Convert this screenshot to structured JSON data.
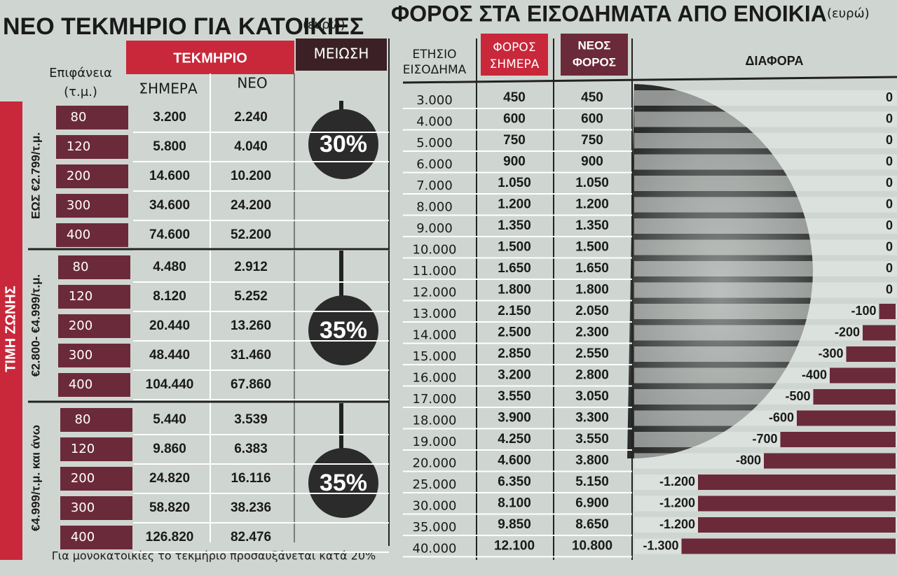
{
  "left": {
    "title": "ΝΕΟ ΤΕΚΜΗΡΙΟ ΓΙΑ ΚΑΤΟΙΚΙΕΣ",
    "unit": "(ευρώ)",
    "headers": {
      "area": [
        "Επιφάνεια",
        "(τ.μ.)"
      ],
      "tekmirio": "ΤΕΚΜΗΡΙΟ",
      "today": "ΣΗΜΕΡΑ",
      "new": "ΝΕΟ",
      "reduction": "ΜΕΙΩΣΗ"
    },
    "side_label": "ΤΙΜΗ ΖΩΝΗΣ",
    "groups": [
      {
        "zone": "ΕΩΣ €2.799/τ.μ.",
        "reduction": "30%",
        "rows": [
          [
            "80",
            "3.200",
            "2.240"
          ],
          [
            "120",
            "5.800",
            "4.040"
          ],
          [
            "200",
            "14.600",
            "10.200"
          ],
          [
            "300",
            "34.600",
            "24.200"
          ],
          [
            "400",
            "74.600",
            "52.200"
          ]
        ]
      },
      {
        "zone": "€2.800- €4.999/τ.μ.",
        "reduction": "35%",
        "rows": [
          [
            "80",
            "4.480",
            "2.912"
          ],
          [
            "120",
            "8.120",
            "5.252"
          ],
          [
            "200",
            "20.440",
            "13.260"
          ],
          [
            "300",
            "48.440",
            "31.460"
          ],
          [
            "400",
            "104.440",
            "67.860"
          ]
        ]
      },
      {
        "zone": "€4.999/τ.μ. και άνω",
        "reduction": "35%",
        "rows": [
          [
            "80",
            "5.440",
            "3.539"
          ],
          [
            "120",
            "9.860",
            "6.383"
          ],
          [
            "200",
            "24.820",
            "16.116"
          ],
          [
            "300",
            "58.820",
            "38.236"
          ],
          [
            "400",
            "126.820",
            "82.476"
          ]
        ]
      }
    ],
    "footnote": "Για μονοκατοικίες το τεκμήριο προσαυξάνεται κατά 20%"
  },
  "right": {
    "title": "ΦΟΡΟΣ ΣΤΑ ΕΙΣΟΔΗΜΑΤΑ ΑΠΟ ΕΝΟΙΚΙΑ",
    "unit": "(ευρώ)",
    "headers": {
      "income": [
        "ΕΤΗΣΙΟ",
        "ΕΙΣΟΔΗΜΑ"
      ],
      "tax_today": [
        "ΦΟΡΟΣ",
        "ΣΗΜΕΡΑ"
      ],
      "tax_new": [
        "ΝΕΟΣ",
        "ΦΟΡΟΣ"
      ],
      "diff": "ΔΙΑΦΟΡΑ"
    },
    "rows": [
      [
        "3.000",
        "450",
        "450",
        0
      ],
      [
        "4.000",
        "600",
        "600",
        0
      ],
      [
        "5.000",
        "750",
        "750",
        0
      ],
      [
        "6.000",
        "900",
        "900",
        0
      ],
      [
        "7.000",
        "1.050",
        "1.050",
        0
      ],
      [
        "8.000",
        "1.200",
        "1.200",
        0
      ],
      [
        "9.000",
        "1.350",
        "1.350",
        0
      ],
      [
        "10.000",
        "1.500",
        "1.500",
        0
      ],
      [
        "11.000",
        "1.650",
        "1.650",
        0
      ],
      [
        "12.000",
        "1.800",
        "1.800",
        0
      ],
      [
        "13.000",
        "2.150",
        "2.050",
        -100
      ],
      [
        "14.000",
        "2.500",
        "2.300",
        -200
      ],
      [
        "15.000",
        "2.850",
        "2.550",
        -300
      ],
      [
        "16.000",
        "3.200",
        "2.800",
        -400
      ],
      [
        "17.000",
        "3.550",
        "3.050",
        -500
      ],
      [
        "18.000",
        "3.900",
        "3.300",
        -600
      ],
      [
        "19.000",
        "4.250",
        "3.550",
        -700
      ],
      [
        "20.000",
        "4.600",
        "3.800",
        -800
      ],
      [
        "25.000",
        "6.350",
        "5.150",
        {
          "value": -1200,
          "label": "-1.200"
        }
      ],
      [
        "30.000",
        "8.100",
        "6.900",
        {
          "value": -1200,
          "label": "-1.200"
        }
      ],
      [
        "35.000",
        "9.850",
        "8.650",
        {
          "value": -1200,
          "label": "-1.200"
        }
      ],
      [
        "40.000",
        "12.100",
        "10.800",
        {
          "value": -1300,
          "label": "-1.300"
        }
      ]
    ]
  }
}
